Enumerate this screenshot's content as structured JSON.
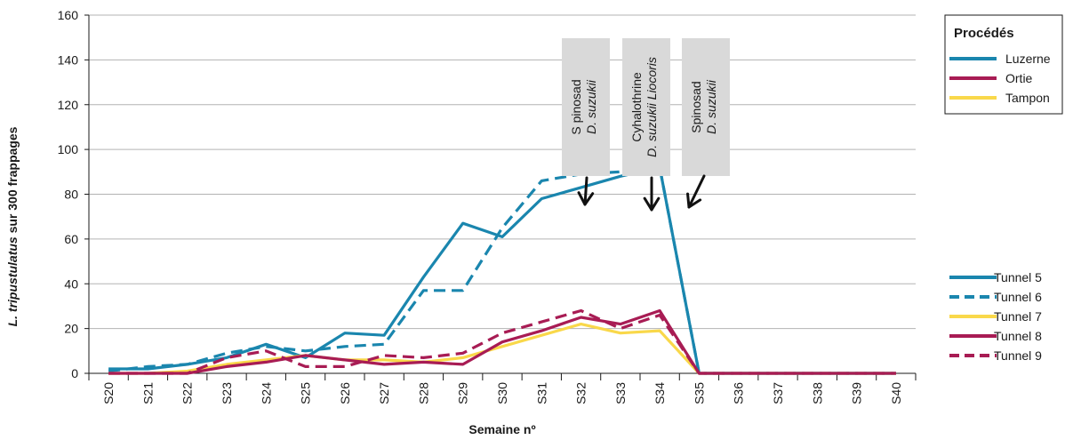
{
  "colors": {
    "luzerne": "#1a86ae",
    "ortie": "#a81c54",
    "tampon": "#f9d84a",
    "grid": "#b3b3b3",
    "annotation_box": "#d9d9d9"
  },
  "chart_data": {
    "type": "line",
    "xlabel": "Semaine nº",
    "ylabel_italic": "L. tripustulatus",
    "ylabel_rest": " sur 300 frappages",
    "ylim": [
      0,
      160
    ],
    "yticks": [
      0,
      20,
      40,
      60,
      80,
      100,
      120,
      140,
      160
    ],
    "grid": true,
    "categories": [
      "S20",
      "S21",
      "S22",
      "S23",
      "S24",
      "S25",
      "S26",
      "S27",
      "S28",
      "S29",
      "S30",
      "S31",
      "S32",
      "S33",
      "S34",
      "S35",
      "S36",
      "S37",
      "S38",
      "S39",
      "S40"
    ],
    "series": [
      {
        "name": "Tunnel 5",
        "color": "luzerne",
        "dash": "solid",
        "values": [
          2,
          2,
          4,
          7,
          13,
          7,
          18,
          17,
          43,
          67,
          61,
          78,
          83,
          88,
          92,
          0,
          0,
          0,
          0,
          0,
          0
        ]
      },
      {
        "name": "Tunnel 6",
        "color": "luzerne",
        "dash": "dashed",
        "values": [
          1,
          3,
          4,
          9,
          12,
          10,
          12,
          13,
          37,
          37,
          65,
          86,
          89,
          90,
          92,
          0,
          0,
          0,
          0,
          0,
          0
        ]
      },
      {
        "name": "Tunnel 7",
        "color": "tampon",
        "dash": "solid",
        "values": [
          0,
          0,
          1,
          4,
          6,
          8,
          6,
          6,
          5,
          7,
          12,
          17,
          22,
          18,
          19,
          0,
          0,
          0,
          0,
          0,
          0
        ]
      },
      {
        "name": "Tunnel 8",
        "color": "ortie",
        "dash": "solid",
        "values": [
          0,
          0,
          0,
          3,
          5,
          8,
          6,
          4,
          5,
          4,
          14,
          19,
          25,
          22,
          28,
          0,
          0,
          0,
          0,
          0,
          0
        ]
      },
      {
        "name": "Tunnel 9",
        "color": "ortie",
        "dash": "dashed",
        "values": [
          0,
          0,
          0,
          7,
          10,
          3,
          3,
          8,
          7,
          9,
          18,
          23,
          28,
          20,
          26,
          0,
          0,
          0,
          0,
          0,
          0
        ]
      }
    ],
    "legend_procedes": {
      "title": "Procédés",
      "items": [
        {
          "label": "Luzerne",
          "color": "luzerne"
        },
        {
          "label": "Ortie",
          "color": "ortie"
        },
        {
          "label": "Tampon",
          "color": "tampon"
        }
      ]
    },
    "annotations": [
      {
        "line1": "S pinosad",
        "line2": "D. suzukii",
        "line2_extra": "",
        "target_week": "S32"
      },
      {
        "line1": "Cyhalothrine",
        "line2": "D. suzukii",
        "line2_extra": " Liocoris",
        "target_week": "S34"
      },
      {
        "line1": "Spinosad",
        "line2": "D. suzukii",
        "line2_extra": "",
        "target_week": "S35"
      }
    ]
  }
}
